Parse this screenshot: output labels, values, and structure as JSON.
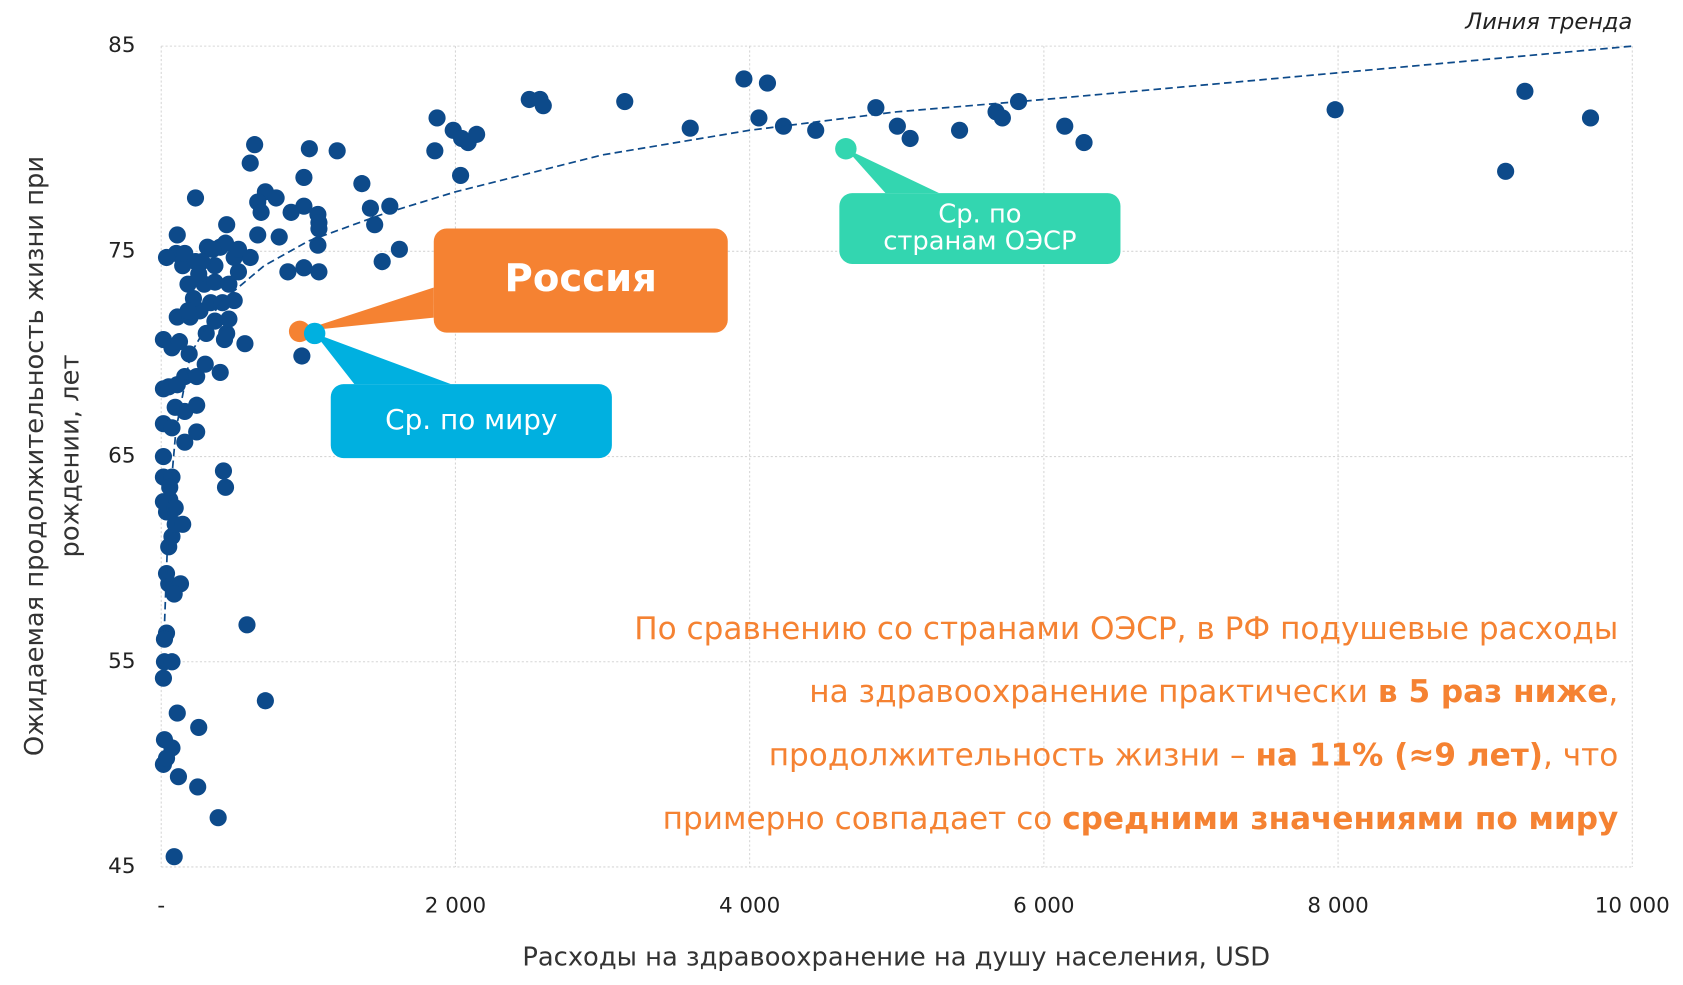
{
  "chart_data": {
    "type": "scatter",
    "xlabel": "Расходы на здравоохранение на душу населения, USD",
    "ylabel": [
      "Ожидаемая продолжительность жизни при",
      "рождении, лет"
    ],
    "color": "#0d4a8a",
    "xlim": [
      0,
      10000
    ],
    "ylim": [
      45,
      85
    ],
    "xticks": [
      {
        "value": 0,
        "label": "-"
      },
      {
        "value": 2000,
        "label": "2 000"
      },
      {
        "value": 4000,
        "label": "4 000"
      },
      {
        "value": 6000,
        "label": "6 000"
      },
      {
        "value": 8000,
        "label": "8 000"
      },
      {
        "value": 10000,
        "label": "10 000"
      }
    ],
    "yticks": [
      45,
      55,
      65,
      75,
      85
    ],
    "grid": true,
    "x": [
      3961,
      4121,
      2575,
      2502,
      2597,
      3151,
      3596,
      4063,
      4230,
      4449,
      4858,
      5004,
      5091,
      5427,
      5675,
      5718,
      5828,
      6142,
      6273,
      7980,
      9139,
      9270,
      9716,
      1875,
      1985,
      2042,
      2086,
      2144,
      1860,
      2035,
      1196,
      1007,
      635,
      605,
      970,
      1364,
      1422,
      1554,
      1451,
      1619,
      1502,
      708,
      781,
      656,
      679,
      883,
      970,
      1065,
      1072,
      1072,
      1065,
      1072,
      970,
      861,
      802,
      656,
      233,
      445,
      569,
      956,
      423,
      437,
      583,
      708,
      255,
      248,
      387,
      88,
      109,
      117,
      73,
      22,
      15,
      36,
      22,
      73,
      15,
      36,
      22,
      51,
      131,
      88,
      36,
      51,
      73,
      95,
      146,
      36,
      58,
      15,
      95,
      15,
      73,
      15,
      58,
      15,
      51,
      109,
      15,
      73,
      95,
      160,
      160,
      160,
      241,
      241,
      241,
      299,
      190,
      15,
      73,
      124,
      109,
      197,
      263,
      336,
      306,
      401,
      430,
      445,
      496,
      416,
      219,
      182,
      292,
      365,
      460,
      525,
      605,
      496,
      525,
      401,
      314,
      365,
      277,
      146,
      102,
      36,
      160,
      109,
      233,
      255,
      437,
      350,
      182,
      365,
      460
    ],
    "values": [
      83.4,
      83.2,
      82.4,
      82.4,
      82.1,
      82.3,
      81.0,
      81.5,
      81.1,
      80.9,
      82.0,
      81.1,
      80.5,
      80.9,
      81.8,
      81.5,
      82.3,
      81.1,
      80.3,
      81.9,
      78.9,
      82.8,
      81.5,
      81.5,
      80.9,
      80.5,
      80.3,
      80.7,
      79.9,
      78.7,
      79.9,
      80.0,
      80.2,
      79.3,
      78.6,
      78.3,
      77.1,
      77.2,
      76.3,
      75.1,
      74.5,
      77.9,
      77.6,
      77.4,
      76.9,
      76.9,
      77.2,
      76.8,
      76.4,
      76.1,
      75.3,
      74.0,
      74.2,
      74.0,
      75.7,
      75.8,
      77.6,
      76.3,
      70.5,
      69.9,
      64.3,
      63.5,
      56.8,
      53.1,
      51.8,
      48.9,
      47.4,
      45.5,
      52.5,
      49.4,
      50.8,
      51.2,
      50.0,
      50.3,
      55.0,
      55.0,
      54.2,
      56.4,
      56.1,
      58.8,
      58.8,
      58.3,
      59.3,
      60.6,
      61.1,
      61.7,
      61.7,
      62.3,
      62.9,
      62.8,
      62.5,
      64.0,
      64.0,
      65.0,
      63.5,
      68.3,
      68.4,
      68.5,
      66.6,
      66.4,
      67.4,
      65.7,
      67.2,
      68.9,
      67.5,
      68.9,
      66.2,
      69.5,
      70.0,
      70.7,
      70.3,
      70.6,
      71.8,
      71.8,
      72.1,
      72.5,
      71.0,
      69.1,
      70.7,
      71.0,
      72.6,
      72.5,
      72.7,
      73.4,
      73.4,
      73.5,
      73.4,
      74.0,
      74.7,
      74.7,
      75.1,
      75.2,
      75.2,
      74.3,
      74.5,
      74.3,
      74.9,
      74.7,
      74.9,
      75.8,
      74.5,
      73.9,
      75.4,
      75.1,
      72.1,
      71.6,
      71.7
    ],
    "trendline": {
      "label": "Линия тренда",
      "color": "#0d4a8a",
      "x": [
        20,
        50,
        100,
        200,
        400,
        700,
        1000,
        1500,
        2000,
        3000,
        4000,
        5000,
        6000,
        8000,
        10000
      ],
      "values": [
        56.4,
        62.2,
        66.3,
        70.0,
        72.5,
        74.3,
        75.5,
        76.8,
        77.9,
        79.7,
        80.9,
        81.8,
        82.4,
        83.7,
        85.0
      ]
    },
    "highlights": [
      {
        "label": [
          "Россия"
        ],
        "x": 941,
        "y": 71.1,
        "color": "#f58232",
        "bold": true
      },
      {
        "label": [
          "Ср. по миру"
        ],
        "x": 1043,
        "y": 71.0,
        "color": "#00b0e0",
        "bold": false
      },
      {
        "label": [
          "Ср. по",
          "странам ОЭСР"
        ],
        "x": 4654,
        "y": 80.0,
        "color": "#33d6b0",
        "bold": false
      }
    ],
    "note": {
      "color": "#f58232",
      "lines": [
        [
          {
            "text": "По сравнению со странами ОЭСР, в РФ подушевые расходы",
            "bold": false
          }
        ],
        [
          {
            "text": "на здравоохранение практически ",
            "bold": false
          },
          {
            "text": "в 5 раз ниже",
            "bold": true
          },
          {
            "text": ",",
            "bold": false
          }
        ],
        [
          {
            "text": "продолжительность жизни – ",
            "bold": false
          },
          {
            "text": "на 11% (≈9 лет)",
            "bold": true
          },
          {
            "text": ", что",
            "bold": false
          }
        ],
        [
          {
            "text": "примерно совпадает со ",
            "bold": false
          },
          {
            "text": "средними значениями по миру",
            "bold": true
          }
        ]
      ]
    }
  }
}
